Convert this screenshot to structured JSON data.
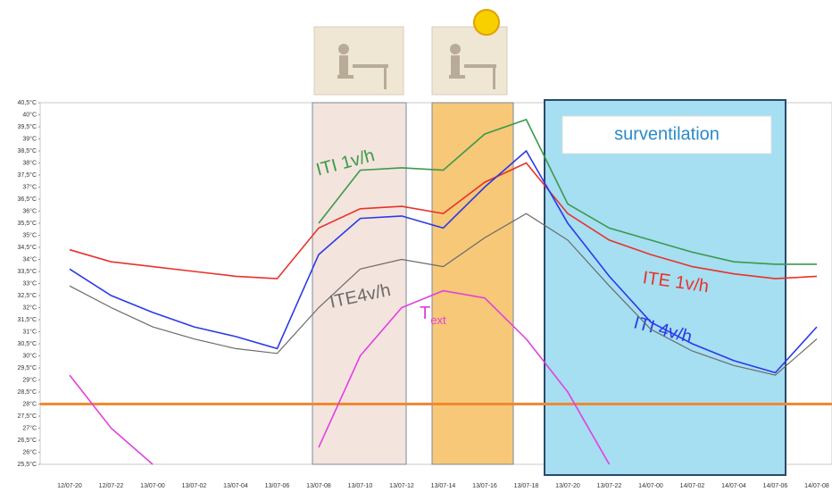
{
  "chart_data": {
    "type": "line",
    "categories": [
      "12/07-20",
      "12/07-22",
      "13/07-00",
      "13/07-02",
      "13/07-04",
      "13/07-06",
      "13/07-08",
      "13/07-10",
      "13/07-12",
      "13/07-14",
      "13/07-16",
      "13/07-18",
      "13/07-20",
      "13/07-22",
      "14/07-00",
      "14/07-02",
      "14/07-04",
      "14/07-06",
      "14/07-08"
    ],
    "series": [
      {
        "name": "ITI 1v/h",
        "color": "#3a9a4a",
        "values": [
          null,
          null,
          null,
          null,
          null,
          null,
          35.5,
          37.7,
          37.8,
          37.7,
          39.2,
          39.8,
          36.3,
          35.3,
          34.8,
          34.3,
          33.9,
          33.8,
          33.8
        ]
      },
      {
        "name": "ITE 1v/h",
        "color": "#e8322a",
        "values": [
          34.4,
          33.9,
          33.7,
          33.5,
          33.3,
          33.2,
          35.3,
          36.1,
          36.2,
          35.9,
          37.2,
          38.0,
          35.9,
          34.8,
          34.2,
          33.7,
          33.4,
          33.2,
          33.3
        ]
      },
      {
        "name": "ITI 4v/h",
        "color": "#2a3ae8",
        "values": [
          33.6,
          32.5,
          31.8,
          31.2,
          30.8,
          30.3,
          34.2,
          35.7,
          35.8,
          35.3,
          37.0,
          38.5,
          35.5,
          33.3,
          31.4,
          30.5,
          29.8,
          29.3,
          31.2
        ]
      },
      {
        "name": "ITE4v/h",
        "color": "#6a6a6a",
        "values": [
          32.9,
          32.0,
          31.2,
          30.7,
          30.3,
          30.1,
          32.0,
          33.6,
          34.0,
          33.7,
          34.9,
          35.9,
          34.8,
          32.9,
          31.1,
          30.2,
          29.6,
          29.2,
          30.7
        ]
      },
      {
        "name": "T",
        "subscript": "ext",
        "color": "#e040e0",
        "values": [
          29.2,
          27.0,
          25.5,
          null,
          null,
          null,
          26.2,
          30.0,
          32.0,
          32.7,
          32.4,
          30.7,
          28.5,
          25.5,
          null,
          null,
          null,
          null,
          null
        ]
      }
    ],
    "reference_line": {
      "value": 28,
      "color": "#f08a30"
    },
    "annotation": "surventilation",
    "ylim": [
      25.5,
      40.5
    ],
    "yticks": [
      {
        "value": 25.5,
        "label": "25,5°C"
      },
      {
        "value": 26,
        "label": "26°C"
      },
      {
        "value": 26.5,
        "label": "26,5°C"
      },
      {
        "value": 27,
        "label": "27°C"
      },
      {
        "value": 27.5,
        "label": "27,5°C"
      },
      {
        "value": 28,
        "label": "28°C"
      },
      {
        "value": 28.5,
        "label": "28,5°C"
      },
      {
        "value": 29,
        "label": "29°C"
      },
      {
        "value": 29.5,
        "label": "29,5°C"
      },
      {
        "value": 30,
        "label": "30°C"
      },
      {
        "value": 30.5,
        "label": "30,5°C"
      },
      {
        "value": 31,
        "label": "31°C"
      },
      {
        "value": 31.5,
        "label": "31,5°C"
      },
      {
        "value": 32,
        "label": "32°C"
      },
      {
        "value": 32.5,
        "label": "32,5°C"
      },
      {
        "value": 33,
        "label": "33°C"
      },
      {
        "value": 33.5,
        "label": "33,5°C"
      },
      {
        "value": 34,
        "label": "34°C"
      },
      {
        "value": 34.5,
        "label": "34,5°C"
      },
      {
        "value": 35,
        "label": "35°C"
      },
      {
        "value": 35.5,
        "label": "35,5°C"
      },
      {
        "value": 36,
        "label": "36°C"
      },
      {
        "value": 36.5,
        "label": "36,5°C"
      },
      {
        "value": 37,
        "label": "37°C"
      },
      {
        "value": 37.5,
        "label": "37,5°C"
      },
      {
        "value": 38,
        "label": "38°C"
      },
      {
        "value": 38.5,
        "label": "38,5°C"
      },
      {
        "value": 39,
        "label": "39°C"
      },
      {
        "value": 39.5,
        "label": "39,5°C"
      },
      {
        "value": 40,
        "label": "40°C"
      },
      {
        "value": 40.5,
        "label": "40,5°C"
      }
    ]
  }
}
